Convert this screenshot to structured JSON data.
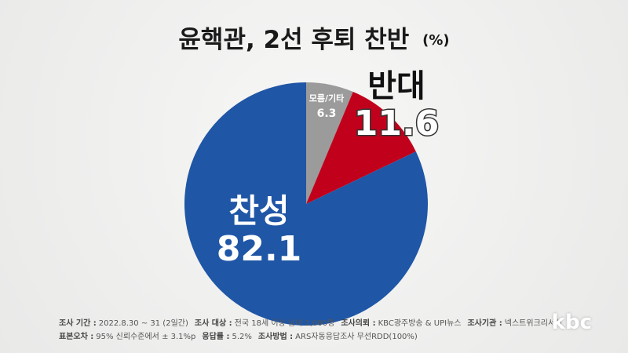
{
  "chart_data": {
    "type": "pie",
    "title": "윤핵관, 2선 후퇴 찬반",
    "subtitle": "(%)",
    "categories": [
      "모름/기타",
      "반대",
      "찬성"
    ],
    "values": [
      6.3,
      11.6,
      82.1
    ],
    "colors": [
      "#9b9b9b",
      "#c1001b",
      "#1f56a6"
    ]
  },
  "footnotes": [
    [
      {
        "label": "조사 기간 :",
        "value": "2022.8.30 ~ 31 (2일간)"
      },
      {
        "label": "조사 대상 :",
        "value": "전국 18세 이상 남녀 1,000명"
      },
      {
        "label": "조사의뢰 :",
        "value": "KBC광주방송 & UPI뉴스"
      },
      {
        "label": "조사기관 :",
        "value": "넥스트위크리서치"
      }
    ],
    [
      {
        "label": "표본오차 :",
        "value": "95% 신뢰수준에서 ± 3.1%p"
      },
      {
        "label": "응답률 :",
        "value": "5.2%"
      },
      {
        "label": "조사방법 :",
        "value": "ARS자동응답조사 무선RDD(100%)"
      }
    ]
  ],
  "logo": "kbc"
}
